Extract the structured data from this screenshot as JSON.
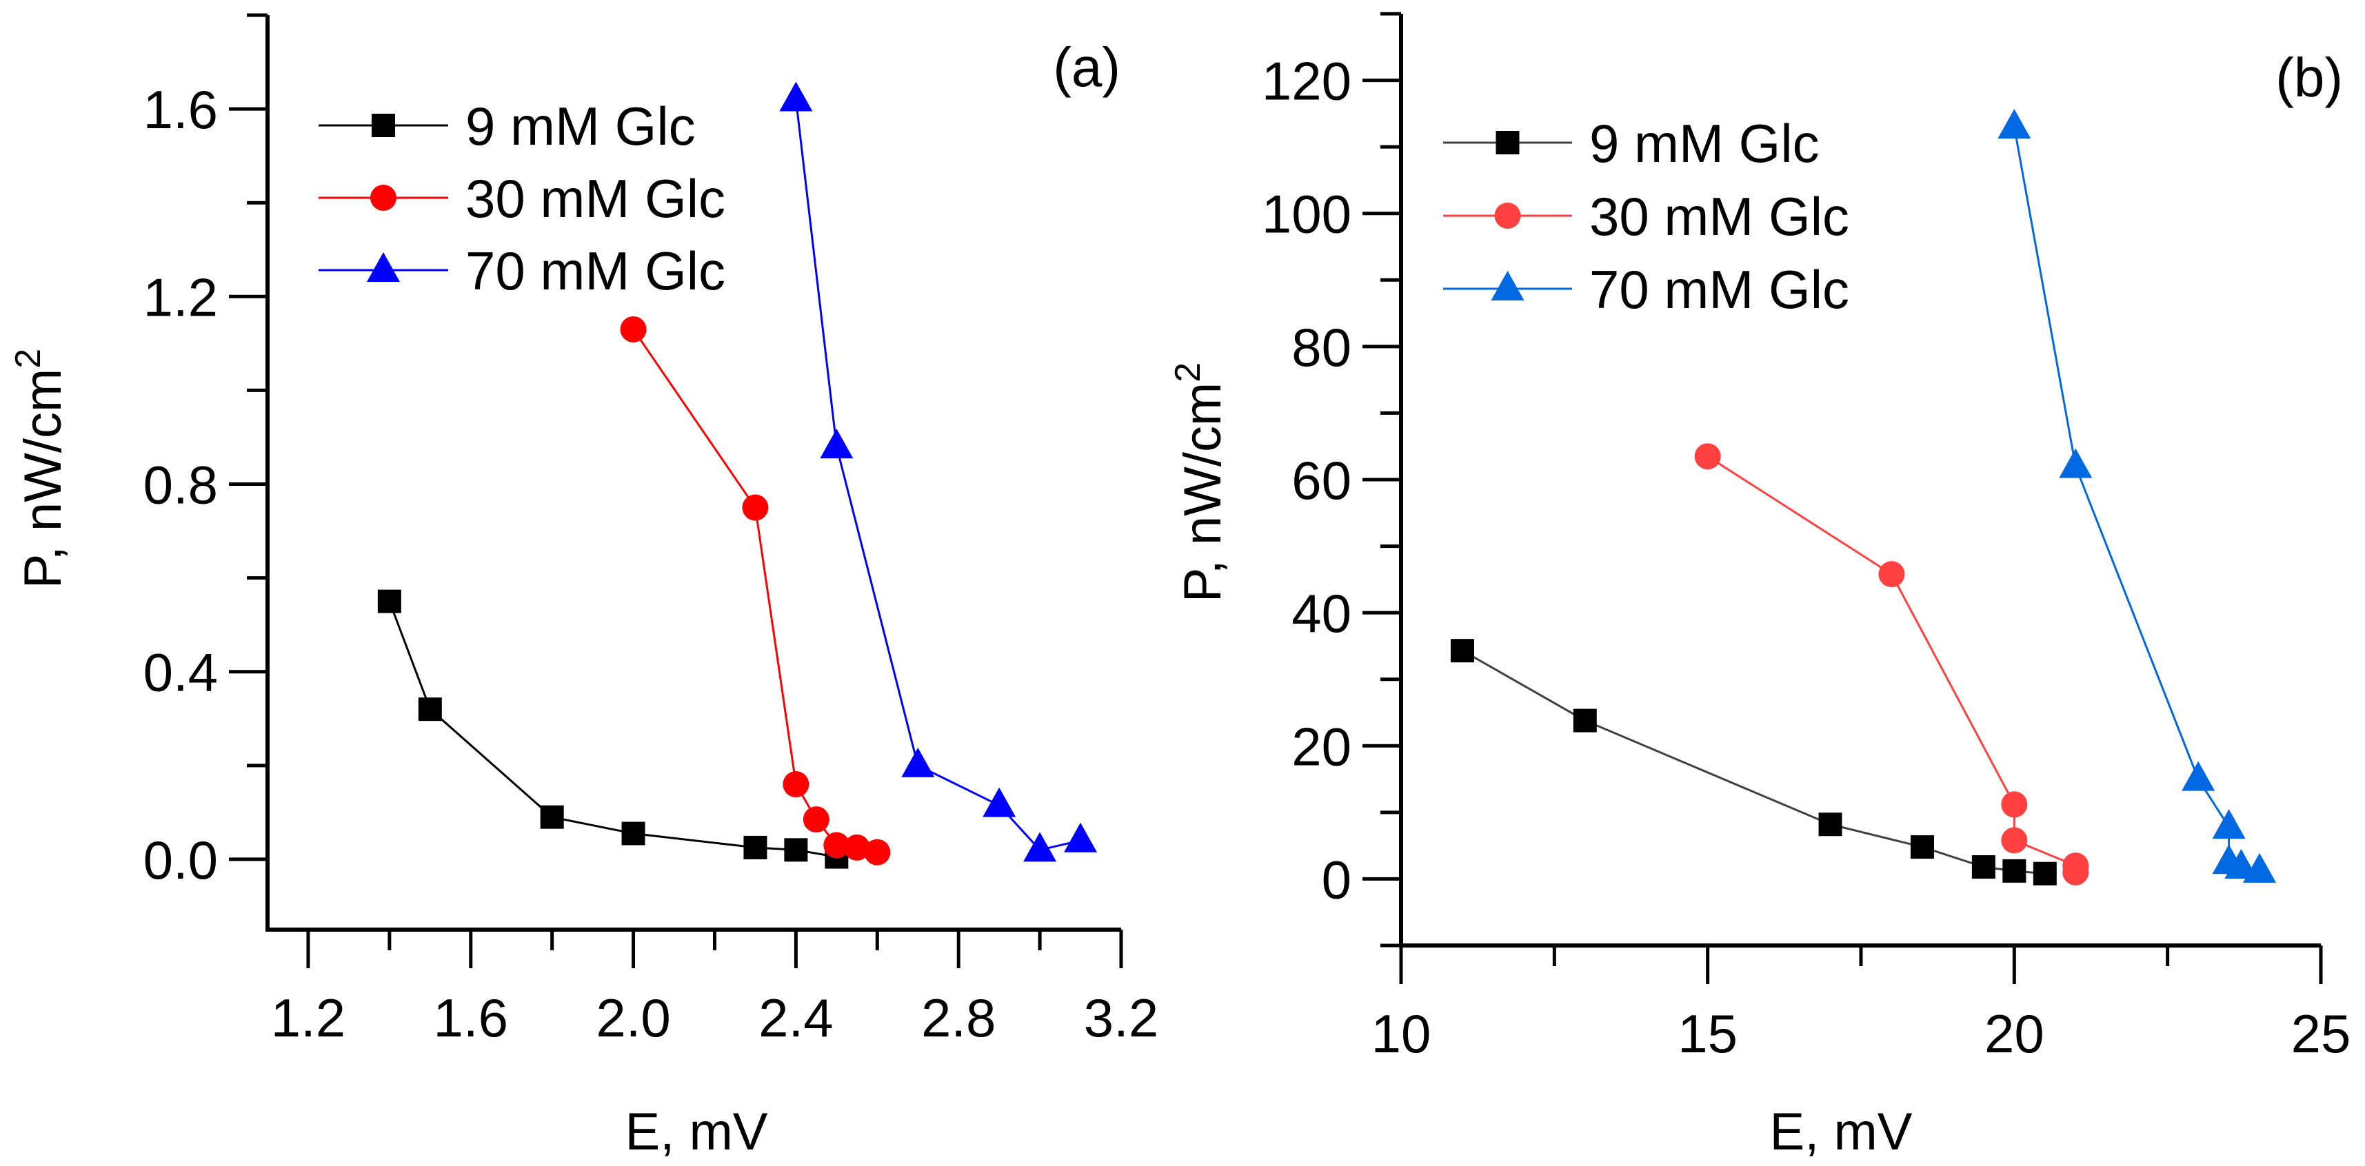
{
  "chart_data": [
    {
      "type": "line",
      "panel_label": "(a)",
      "xlabel": "E, mV",
      "ylabel": "P, nW/cm",
      "ylabel_superscript": "2",
      "xlim": [
        1.1,
        3.2
      ],
      "ylim": [
        -0.15,
        1.8
      ],
      "x_ticks": [
        "1.2",
        "1.6",
        "2.0",
        "2.4",
        "2.8",
        "3.2"
      ],
      "y_ticks": [
        "0.0",
        "0.4",
        "0.8",
        "1.2",
        "1.6"
      ],
      "x_tick_step": 0.4,
      "x_minor_step": 0.2,
      "y_tick_step": 0.4,
      "y_minor_step": 0.2,
      "grid": false,
      "legend_position": "top-left",
      "series": [
        {
          "name": "9 mM Glc",
          "marker": "square",
          "color": "#000000",
          "x": [
            1.4,
            1.5,
            1.8,
            2.0,
            2.3,
            2.4,
            2.5
          ],
          "y": [
            0.55,
            0.32,
            0.09,
            0.055,
            0.025,
            0.02,
            0.005
          ]
        },
        {
          "name": "30 mM Glc",
          "marker": "circle",
          "color": "#ff0000",
          "x": [
            2.0,
            2.3,
            2.4,
            2.45,
            2.5,
            2.55,
            2.6
          ],
          "y": [
            1.13,
            0.75,
            0.16,
            0.085,
            0.03,
            0.025,
            0.015
          ]
        },
        {
          "name": "70 mM Glc",
          "marker": "triangle",
          "color": "#0000ff",
          "x": [
            2.4,
            2.5,
            2.7,
            2.9,
            3.0,
            3.1
          ],
          "y": [
            1.62,
            0.88,
            0.2,
            0.115,
            0.02,
            0.04
          ]
        }
      ]
    },
    {
      "type": "line",
      "panel_label": "(b)",
      "xlabel": "E, mV",
      "ylabel": "P, nW/cm",
      "ylabel_superscript": "2",
      "xlim": [
        10,
        25
      ],
      "ylim": [
        -10,
        130
      ],
      "x_ticks": [
        "10",
        "15",
        "20",
        "25"
      ],
      "y_ticks": [
        "0",
        "20",
        "40",
        "60",
        "80",
        "100",
        "120"
      ],
      "x_tick_step": 5,
      "x_minor_step": 2.5,
      "y_tick_step": 20,
      "y_minor_step": 10,
      "grid": false,
      "legend_position": "top-left",
      "series": [
        {
          "name": "9 mM Glc",
          "marker": "square",
          "color": "#000000",
          "line_color": "#404040",
          "x": [
            11,
            13,
            17,
            18.5,
            19.5,
            20,
            20.5
          ],
          "y": [
            34.3,
            23.8,
            8.2,
            4.8,
            1.8,
            1.2,
            0.8
          ]
        },
        {
          "name": "30 mM Glc",
          "marker": "circle",
          "color": "#ff4040",
          "x": [
            15,
            18,
            20,
            20,
            21,
            21
          ],
          "y": [
            63.5,
            45.8,
            11.2,
            5.8,
            2.0,
            1.0
          ]
        },
        {
          "name": "70 mM Glc",
          "marker": "triangle",
          "color": "#0068e0",
          "x": [
            20,
            21,
            23,
            23.5,
            23.5,
            23.7,
            24
          ],
          "y": [
            113,
            62,
            15,
            7.8,
            2.5,
            1.8,
            1.2
          ]
        }
      ]
    }
  ]
}
